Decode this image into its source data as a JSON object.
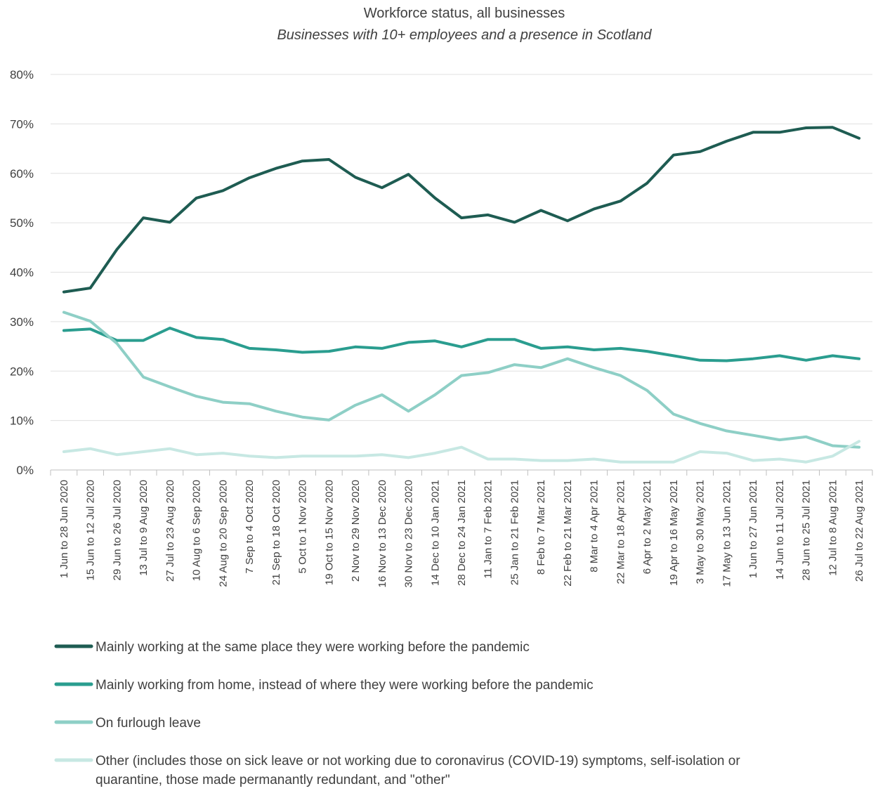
{
  "chart_data": {
    "type": "line",
    "title": "Workforce status, all businesses",
    "subtitle": "Businesses with 10+ employees and a presence in Scotland",
    "ylim": [
      0,
      80
    ],
    "yticks": [
      "0%",
      "10%",
      "20%",
      "30%",
      "40%",
      "50%",
      "60%",
      "70%",
      "80%"
    ],
    "ytick_values": [
      0,
      10,
      20,
      30,
      40,
      50,
      60,
      70,
      80
    ],
    "grid": "horizontal",
    "legend_position": "bottom",
    "categories": [
      "1 Jun to 28 Jun 2020",
      "15 Jun to 12 Jul 2020",
      "29 Jun to 26 Jul 2020",
      "13 Jul to 9 Aug 2020",
      "27 Jul to 23 Aug 2020",
      "10 Aug to 6 Sep 2020",
      "24 Aug to 20 Sep 2020",
      "7 Sep to 4 Oct 2020",
      "21 Sep to 18 Oct 2020",
      "5 Oct to 1 Nov 2020",
      "19 Oct to 15 Nov 2020",
      "2 Nov to 29 Nov 2020",
      "16 Nov to 13 Dec 2020",
      "30 Nov to 23 Dec 2020",
      "14 Dec to 10 Jan 2021",
      "28 Dec to 24 Jan 2021",
      "11 Jan to 7 Feb 2021",
      "25 Jan to 21 Feb 2021",
      "8 Feb to 7 Mar 2021",
      "22 Feb to 21 Mar 2021",
      "8 Mar to 4 Apr 2021",
      "22 Mar to 18 Apr 2021",
      "6 Apr to 2 May 2021",
      "19 Apr to 16 May 2021",
      "3 May to 30 May 2021",
      "17 May to 13 Jun 2021",
      "1 Jun to 27 Jun 2021",
      "14 Jun to 11 Jul 2021",
      "28 Jun to 25 Jul 2021",
      "12 Jul to 8 Aug 2021",
      "26 Jul to 22 Aug 2021"
    ],
    "series": [
      {
        "name": "Mainly working at the same place they were working before the pandemic",
        "color": "#1e5c52",
        "values": [
          36.0,
          36.8,
          44.6,
          51.0,
          50.1,
          55.0,
          56.5,
          59.1,
          61.0,
          62.5,
          62.8,
          59.2,
          57.1,
          59.8,
          55.0,
          51.0,
          51.6,
          50.1,
          52.5,
          50.4,
          52.8,
          54.4,
          58.0,
          63.7,
          64.4,
          66.5,
          68.3,
          68.3,
          69.2,
          69.3,
          67.1
        ]
      },
      {
        "name": "Mainly working from home, instead of where they were working before the pandemic",
        "color": "#2a9d8f",
        "values": [
          28.2,
          28.5,
          26.2,
          26.2,
          28.7,
          26.8,
          26.4,
          24.6,
          24.3,
          23.8,
          24.0,
          24.9,
          24.6,
          25.8,
          26.1,
          24.9,
          26.4,
          26.4,
          24.6,
          24.9,
          24.3,
          24.6,
          24.0,
          23.1,
          22.2,
          22.1,
          22.5,
          23.1,
          22.2,
          23.1,
          22.5
        ]
      },
      {
        "name": "On furlough leave",
        "color": "#8ecfc6",
        "values": [
          31.9,
          30.1,
          25.6,
          18.8,
          16.8,
          14.9,
          13.7,
          13.4,
          11.9,
          10.7,
          10.1,
          13.1,
          15.2,
          11.9,
          15.2,
          19.1,
          19.7,
          21.3,
          20.7,
          22.5,
          20.7,
          19.1,
          16.1,
          11.3,
          9.4,
          7.9,
          7.0,
          6.1,
          6.7,
          4.9,
          4.6
        ]
      },
      {
        "name": "Other (includes those on sick leave or not working due to coronavirus (COVID-19) symptoms, self-isolation or quarantine, those made permanantly redundant, and \"other\"",
        "color": "#c7e8e3",
        "values": [
          3.7,
          4.3,
          3.1,
          3.7,
          4.3,
          3.1,
          3.4,
          2.8,
          2.5,
          2.8,
          2.8,
          2.8,
          3.1,
          2.5,
          3.4,
          4.6,
          2.2,
          2.2,
          1.9,
          1.9,
          2.2,
          1.6,
          1.6,
          1.6,
          3.7,
          3.4,
          1.9,
          2.2,
          1.6,
          2.8,
          5.8
        ]
      }
    ],
    "legend_lines": [
      [
        "Mainly working at the same place they were working before the pandemic"
      ],
      [
        "Mainly working from home, instead of where they were working before the pandemic"
      ],
      [
        "On furlough leave"
      ],
      [
        "Other (includes those on sick leave or not working due to coronavirus (COVID-19) symptoms, self-isolation or",
        "quarantine, those made permanantly redundant, and \"other\""
      ]
    ],
    "grid_color": "#e0e0e0",
    "axis_color": "#bfbfbf"
  }
}
